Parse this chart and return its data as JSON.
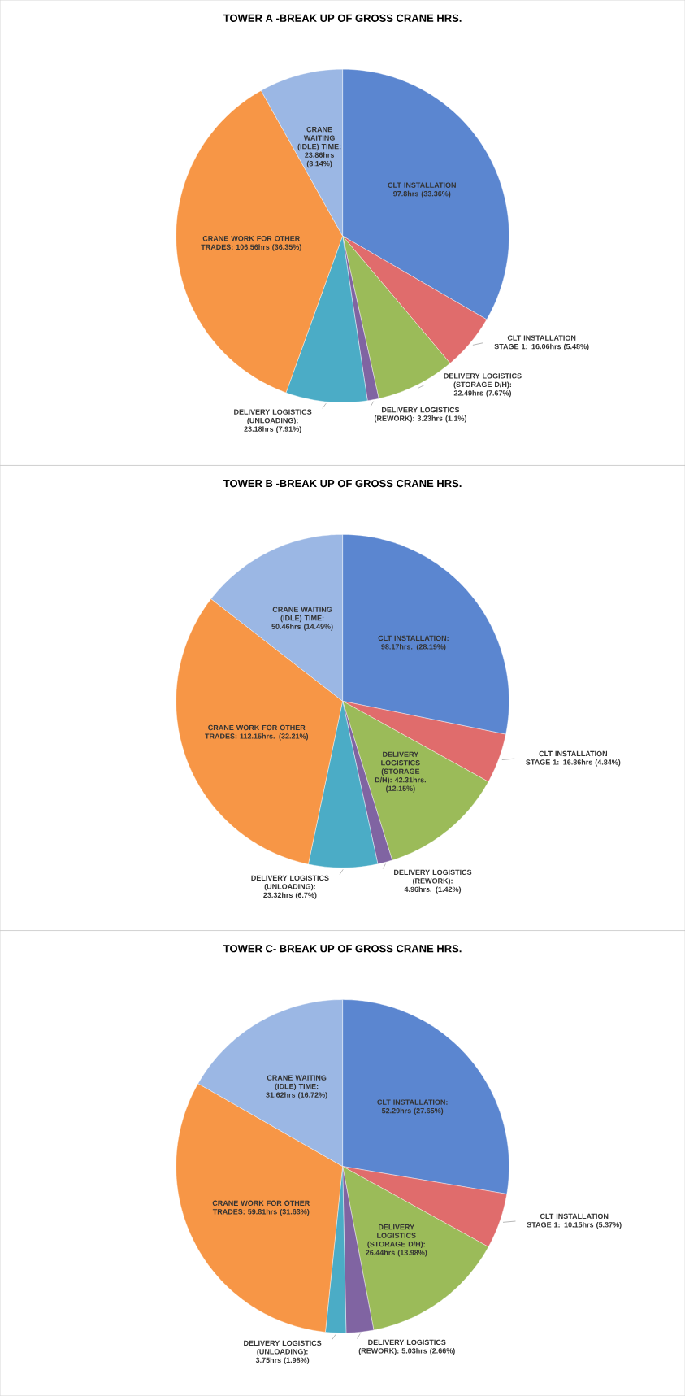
{
  "chart_data": [
    {
      "type": "pie",
      "title": "TOWER A -BREAK UP OF GROSS CRANE HRS.",
      "categories": [
        "CLT INSTALLATION 97.8hrs (33.36%)",
        "CLT INSTALLATION STAGE 1: 16.06hrs (5.48%)",
        "DELIVERY LOGISTICS (STORAGE D/H): 22.49hrs (7.67%)",
        "DELIVERY LOGISTICS (REWORK): 3.23hrs (1.1%)",
        "DELIVERY LOGISTICS (UNLOADING): 23.18hrs (7.91%)",
        "CRANE WORK FOR OTHER TRADES: 106.56hrs (36.35%)",
        "CRANE WAITING (IDLE) TIME: 23.86hrs (8.14%)"
      ],
      "values": [
        97.8,
        16.06,
        22.49,
        3.23,
        23.18,
        106.56,
        23.86
      ],
      "colors": [
        "#5b86d0",
        "#e06c6c",
        "#9bbb59",
        "#8064a2",
        "#4bacc6",
        "#f79646",
        "#9bb7e4"
      ]
    },
    {
      "type": "pie",
      "title": "TOWER B -BREAK UP OF GROSS CRANE HRS.",
      "categories": [
        "CLT INSTALLATION: 98.17hrs. (28.19%)",
        "CLT INSTALLATION STAGE 1: 16.86hrs (4.84%)",
        "DELIVERY LOGISTICS (STORAGE D/H): 42.31hrs. (12.15%)",
        "DELIVERY LOGISTICS (REWORK): 4.96hrs. (1.42%)",
        "DELIVERY LOGISTICS (UNLOADING): 23.32hrs (6.7%)",
        "CRANE WORK FOR OTHER TRADES: 112.15hrs. (32.21%)",
        "CRANE WAITING (IDLE) TIME: 50.46hrs (14.49%)"
      ],
      "values": [
        98.17,
        16.86,
        42.31,
        4.96,
        23.32,
        112.15,
        50.46
      ],
      "colors": [
        "#5b86d0",
        "#e06c6c",
        "#9bbb59",
        "#8064a2",
        "#4bacc6",
        "#f79646",
        "#9bb7e4"
      ]
    },
    {
      "type": "pie",
      "title": "TOWER C- BREAK UP OF GROSS CRANE HRS.",
      "categories": [
        "CLT INSTALLATION: 52.29hrs (27.65%)",
        "CLT INSTALLATION STAGE 1: 10.15hrs (5.37%)",
        "DELIVERY LOGISTICS (STORAGE D/H): 26.44hrs (13.98%)",
        "DELIVERY LOGISTICS (REWORK): 5.03hrs (2.66%)",
        "DELIVERY LOGISTICS (UNLOADING): 3.75hrs (1.98%)",
        "CRANE WORK FOR OTHER TRADES: 59.81hrs (31.63%)",
        "CRANE WAITING (IDLE) TIME: 31.62hrs (16.72%)"
      ],
      "values": [
        52.29,
        10.15,
        26.44,
        5.03,
        3.75,
        59.81,
        31.62
      ],
      "colors": [
        "#5b86d0",
        "#e06c6c",
        "#9bbb59",
        "#8064a2",
        "#4bacc6",
        "#f79646",
        "#9bb7e4"
      ]
    }
  ]
}
